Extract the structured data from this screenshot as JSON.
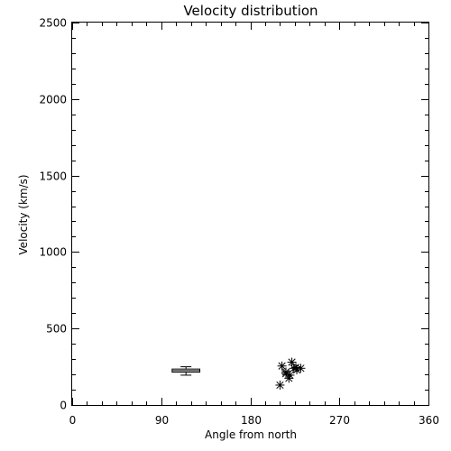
{
  "chart_data": {
    "type": "scatter",
    "title": "Velocity distribution",
    "xlabel": "Angle from north",
    "ylabel": "Velocity (km/s)",
    "xlim": [
      0,
      360
    ],
    "ylim": [
      0,
      2500
    ],
    "x_ticks": [
      0,
      90,
      180,
      270,
      360
    ],
    "y_ticks": [
      0,
      500,
      1000,
      1500,
      2000,
      2500
    ],
    "x_minor_step": 15,
    "y_minor_step": 100,
    "grid": false,
    "legend": "none",
    "color": "#000000",
    "box": {
      "x": 115,
      "x_range": [
        101,
        129
      ],
      "median": 225,
      "q1": 215,
      "q3": 235,
      "whisker_low": 195,
      "whisker_high": 250
    },
    "points": [
      {
        "x": 212,
        "y": 255
      },
      {
        "x": 222,
        "y": 280
      },
      {
        "x": 216,
        "y": 205
      },
      {
        "x": 220,
        "y": 195
      },
      {
        "x": 219,
        "y": 175
      },
      {
        "x": 224,
        "y": 240
      },
      {
        "x": 227,
        "y": 230
      },
      {
        "x": 231,
        "y": 240
      },
      {
        "x": 210,
        "y": 130
      },
      {
        "x": 216,
        "y": 215
      },
      {
        "x": 226,
        "y": 245
      }
    ]
  }
}
